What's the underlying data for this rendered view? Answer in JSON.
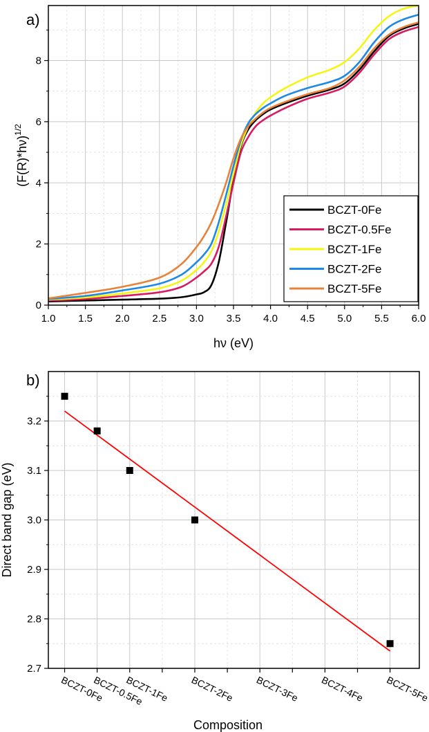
{
  "chart_data": [
    {
      "type": "line",
      "panel_label": "a)",
      "xlabel": "hν (eV)",
      "ylabel": "(F(R)*hν)1/2",
      "ylabel_base": "(F(R)*hν)",
      "ylabel_sup": "1/2",
      "xlim": [
        1.0,
        6.0
      ],
      "ylim": [
        0,
        9.8
      ],
      "xticks": [
        "1.0",
        "1.5",
        "2.0",
        "2.5",
        "3.0",
        "3.5",
        "4.0",
        "4.5",
        "5.0",
        "5.5",
        "6.0"
      ],
      "yticks": [
        "0",
        "2",
        "4",
        "6",
        "8"
      ],
      "grid": true,
      "legend_position": "bottom-right",
      "series": [
        {
          "name": "BCZT-0Fe",
          "color": "#000000",
          "x": [
            1.0,
            1.5,
            2.0,
            2.5,
            2.8,
            3.0,
            3.1,
            3.2,
            3.3,
            3.4,
            3.5,
            3.6,
            3.7,
            3.8,
            3.9,
            4.0,
            4.2,
            4.5,
            4.8,
            5.0,
            5.2,
            5.4,
            5.6,
            5.8,
            6.0
          ],
          "y": [
            0.12,
            0.15,
            0.18,
            0.21,
            0.26,
            0.35,
            0.42,
            0.65,
            1.4,
            2.7,
            4.1,
            5.2,
            5.75,
            6.05,
            6.25,
            6.4,
            6.6,
            6.85,
            7.05,
            7.25,
            7.7,
            8.3,
            8.8,
            9.05,
            9.2
          ]
        },
        {
          "name": "BCZT-0.5Fe",
          "color": "#d81b60",
          "x": [
            1.0,
            1.5,
            2.0,
            2.5,
            2.8,
            3.0,
            3.1,
            3.2,
            3.3,
            3.4,
            3.5,
            3.6,
            3.7,
            3.8,
            3.9,
            4.0,
            4.2,
            4.5,
            4.8,
            5.0,
            5.2,
            5.4,
            5.6,
            5.8,
            6.0
          ],
          "y": [
            0.15,
            0.2,
            0.3,
            0.42,
            0.6,
            0.9,
            1.1,
            1.35,
            1.9,
            2.9,
            4.0,
            5.0,
            5.5,
            5.85,
            6.05,
            6.2,
            6.45,
            6.75,
            6.95,
            7.15,
            7.6,
            8.2,
            8.7,
            8.95,
            9.1
          ]
        },
        {
          "name": "BCZT-1Fe",
          "color": "#f5f514",
          "x": [
            1.0,
            1.5,
            2.0,
            2.5,
            2.8,
            3.0,
            3.1,
            3.2,
            3.3,
            3.4,
            3.5,
            3.6,
            3.7,
            3.8,
            3.9,
            4.0,
            4.2,
            4.5,
            4.8,
            5.0,
            5.2,
            5.4,
            5.6,
            5.8,
            6.0
          ],
          "y": [
            0.18,
            0.25,
            0.38,
            0.55,
            0.8,
            1.15,
            1.4,
            1.75,
            2.4,
            3.3,
            4.3,
            5.25,
            5.85,
            6.3,
            6.6,
            6.8,
            7.1,
            7.45,
            7.7,
            7.95,
            8.4,
            9.0,
            9.45,
            9.7,
            9.8
          ]
        },
        {
          "name": "BCZT-2Fe",
          "color": "#1e88e5",
          "x": [
            1.0,
            1.5,
            2.0,
            2.5,
            2.8,
            3.0,
            3.1,
            3.2,
            3.3,
            3.4,
            3.5,
            3.6,
            3.7,
            3.8,
            3.9,
            4.0,
            4.2,
            4.5,
            4.8,
            5.0,
            5.2,
            5.4,
            5.6,
            5.8,
            6.0
          ],
          "y": [
            0.2,
            0.3,
            0.48,
            0.7,
            1.0,
            1.4,
            1.65,
            2.0,
            2.7,
            3.6,
            4.55,
            5.4,
            5.95,
            6.25,
            6.45,
            6.6,
            6.85,
            7.1,
            7.3,
            7.5,
            7.95,
            8.6,
            9.1,
            9.35,
            9.5
          ]
        },
        {
          "name": "BCZT-5Fe",
          "color": "#e8823a",
          "x": [
            1.0,
            1.5,
            2.0,
            2.5,
            2.8,
            3.0,
            3.1,
            3.2,
            3.3,
            3.4,
            3.5,
            3.6,
            3.7,
            3.8,
            3.9,
            4.0,
            4.2,
            4.5,
            4.8,
            5.0,
            5.2,
            5.4,
            5.6,
            5.8,
            6.0
          ],
          "y": [
            0.22,
            0.4,
            0.6,
            0.9,
            1.35,
            1.9,
            2.25,
            2.7,
            3.3,
            4.0,
            4.8,
            5.45,
            5.85,
            6.1,
            6.3,
            6.45,
            6.65,
            6.9,
            7.1,
            7.35,
            7.8,
            8.4,
            8.85,
            9.1,
            9.25
          ]
        }
      ]
    },
    {
      "type": "scatter",
      "panel_label": "b)",
      "xlabel": "Composition",
      "ylabel": "Direct band gap (eV)",
      "categories": [
        "BCZT-0Fe",
        "BCZT-0.5Fe",
        "BCZT-1Fe",
        "BCZT-2Fe",
        "BCZT-3Fe",
        "BCZT-4Fe",
        "BCZT-5Fe"
      ],
      "category_x": [
        0,
        0.5,
        1,
        2,
        3,
        4,
        5
      ],
      "xlim": [
        -0.25,
        5.45
      ],
      "ylim": [
        2.7,
        3.3
      ],
      "yticks": [
        "2.7",
        "2.8",
        "2.9",
        "3.0",
        "3.1",
        "3.2"
      ],
      "grid": true,
      "points": {
        "x": [
          0,
          0.5,
          1,
          2,
          5
        ],
        "y": [
          3.25,
          3.18,
          3.1,
          3.0,
          2.75
        ],
        "color": "#000000"
      },
      "fit_line": {
        "x": [
          0,
          5
        ],
        "y": [
          3.22,
          2.735
        ],
        "color": "#ff0000"
      }
    }
  ]
}
